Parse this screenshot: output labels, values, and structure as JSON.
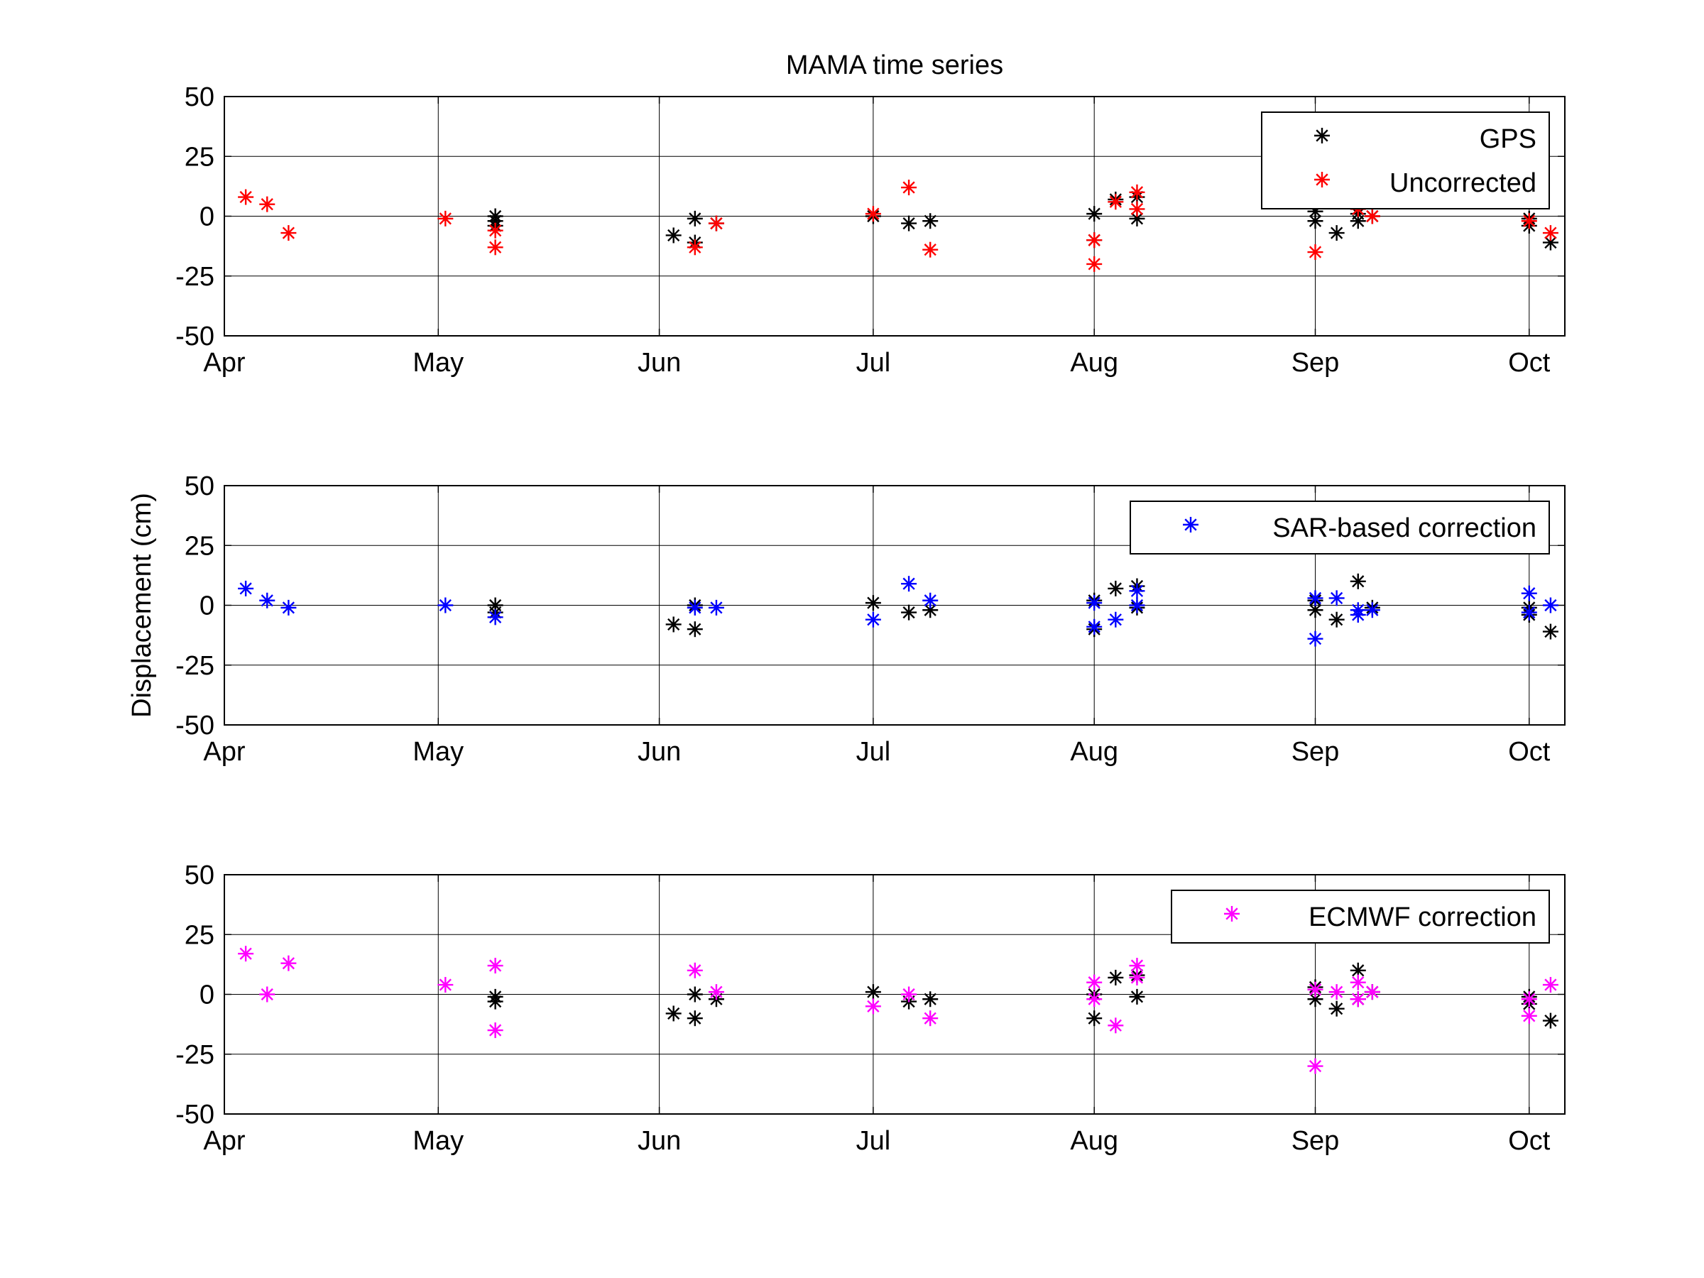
{
  "chart_data": [
    {
      "type": "scatter",
      "title": "MAMA time series",
      "xlabel": "",
      "ylabel": "",
      "x_ticks": [
        "Apr",
        "May",
        "Jun",
        "Jul",
        "Aug",
        "Sep",
        "Oct"
      ],
      "xlim": [
        "2000-04-01",
        "2000-10-06"
      ],
      "ylim": [
        -50,
        50
      ],
      "y_ticks": [
        -50,
        -25,
        0,
        25,
        50
      ],
      "grid": true,
      "legend": "top-right",
      "series": [
        {
          "name": "GPS",
          "color": "#000000",
          "marker": "asterisk",
          "points": [
            [
              "2000-05-09",
              0
            ],
            [
              "2000-05-09",
              -2
            ],
            [
              "2000-05-09",
              -4
            ],
            [
              "2000-06-03",
              -8
            ],
            [
              "2000-06-06",
              -1
            ],
            [
              "2000-06-06",
              -11
            ],
            [
              "2000-06-09",
              -3
            ],
            [
              "2000-07-01",
              0
            ],
            [
              "2000-07-06",
              -3
            ],
            [
              "2000-07-09",
              -2
            ],
            [
              "2000-08-01",
              1
            ],
            [
              "2000-08-01",
              -10
            ],
            [
              "2000-08-04",
              7
            ],
            [
              "2000-08-07",
              8
            ],
            [
              "2000-08-07",
              -1
            ],
            [
              "2000-09-01",
              2
            ],
            [
              "2000-09-01",
              -2
            ],
            [
              "2000-09-04",
              -7
            ],
            [
              "2000-09-07",
              -2
            ],
            [
              "2000-09-07",
              1
            ],
            [
              "2000-09-09",
              0
            ],
            [
              "2000-10-01",
              -4
            ],
            [
              "2000-10-01",
              -1
            ],
            [
              "2000-10-04",
              -11
            ]
          ]
        },
        {
          "name": "Uncorrected",
          "color": "#ff0000",
          "marker": "asterisk",
          "points": [
            [
              "2000-04-04",
              8
            ],
            [
              "2000-04-07",
              5
            ],
            [
              "2000-04-10",
              -7
            ],
            [
              "2000-05-02",
              -1
            ],
            [
              "2000-05-09",
              -13
            ],
            [
              "2000-05-09",
              -6
            ],
            [
              "2000-06-06",
              -13
            ],
            [
              "2000-06-09",
              -3
            ],
            [
              "2000-07-01",
              1
            ],
            [
              "2000-07-06",
              12
            ],
            [
              "2000-07-09",
              -14
            ],
            [
              "2000-08-01",
              -20
            ],
            [
              "2000-08-01",
              -10
            ],
            [
              "2000-08-04",
              6
            ],
            [
              "2000-08-07",
              10
            ],
            [
              "2000-08-07",
              3
            ],
            [
              "2000-09-01",
              -15
            ],
            [
              "2000-09-07",
              3
            ],
            [
              "2000-09-09",
              0
            ],
            [
              "2000-10-01",
              -2
            ],
            [
              "2000-10-04",
              -7
            ]
          ]
        }
      ]
    },
    {
      "type": "scatter",
      "title": "",
      "xlabel": "",
      "ylabel": "Displacement (cm)",
      "x_ticks": [
        "Apr",
        "May",
        "Jun",
        "Jul",
        "Aug",
        "Sep",
        "Oct"
      ],
      "xlim": [
        "2000-04-01",
        "2000-10-06"
      ],
      "ylim": [
        -50,
        50
      ],
      "y_ticks": [
        -50,
        -25,
        0,
        25,
        50
      ],
      "grid": true,
      "legend": "top-right",
      "series": [
        {
          "name": "",
          "color": "#000000",
          "marker": "asterisk",
          "points": [
            [
              "2000-05-09",
              0
            ],
            [
              "2000-05-09",
              -3
            ],
            [
              "2000-06-03",
              -8
            ],
            [
              "2000-06-06",
              0
            ],
            [
              "2000-06-06",
              -10
            ],
            [
              "2000-07-01",
              1
            ],
            [
              "2000-07-06",
              -3
            ],
            [
              "2000-07-09",
              -2
            ],
            [
              "2000-08-01",
              -10
            ],
            [
              "2000-08-01",
              2
            ],
            [
              "2000-08-04",
              7
            ],
            [
              "2000-08-07",
              8
            ],
            [
              "2000-08-07",
              -1
            ],
            [
              "2000-09-01",
              2
            ],
            [
              "2000-09-01",
              -2
            ],
            [
              "2000-09-04",
              -6
            ],
            [
              "2000-09-07",
              10
            ],
            [
              "2000-09-09",
              -1
            ],
            [
              "2000-10-01",
              -4
            ],
            [
              "2000-10-01",
              -1
            ],
            [
              "2000-10-04",
              -11
            ]
          ]
        },
        {
          "name": "SAR-based correction",
          "color": "#0000ff",
          "marker": "asterisk",
          "points": [
            [
              "2000-04-04",
              7
            ],
            [
              "2000-04-07",
              2
            ],
            [
              "2000-04-10",
              -1
            ],
            [
              "2000-05-02",
              0
            ],
            [
              "2000-05-09",
              -5
            ],
            [
              "2000-06-06",
              -1
            ],
            [
              "2000-06-09",
              -1
            ],
            [
              "2000-07-01",
              -6
            ],
            [
              "2000-07-06",
              9
            ],
            [
              "2000-07-09",
              2
            ],
            [
              "2000-08-01",
              1
            ],
            [
              "2000-08-01",
              -9
            ],
            [
              "2000-08-04",
              -6
            ],
            [
              "2000-08-07",
              6
            ],
            [
              "2000-08-07",
              0
            ],
            [
              "2000-09-01",
              3
            ],
            [
              "2000-09-01",
              -14
            ],
            [
              "2000-09-04",
              3
            ],
            [
              "2000-09-07",
              -2
            ],
            [
              "2000-09-07",
              -4
            ],
            [
              "2000-09-09",
              -2
            ],
            [
              "2000-10-01",
              5
            ],
            [
              "2000-10-01",
              -3
            ],
            [
              "2000-10-04",
              0
            ]
          ]
        }
      ]
    },
    {
      "type": "scatter",
      "title": "",
      "xlabel": "",
      "ylabel": "",
      "x_ticks": [
        "Apr",
        "May",
        "Jun",
        "Jul",
        "Aug",
        "Sep",
        "Oct"
      ],
      "xlim": [
        "2000-04-01",
        "2000-10-06"
      ],
      "ylim": [
        -50,
        50
      ],
      "y_ticks": [
        -50,
        -25,
        0,
        25,
        50
      ],
      "grid": true,
      "legend": "top-right",
      "series": [
        {
          "name": "",
          "color": "#000000",
          "marker": "asterisk",
          "points": [
            [
              "2000-05-09",
              -1
            ],
            [
              "2000-05-09",
              -3
            ],
            [
              "2000-06-03",
              -8
            ],
            [
              "2000-06-06",
              0
            ],
            [
              "2000-06-06",
              -10
            ],
            [
              "2000-06-09",
              -2
            ],
            [
              "2000-07-01",
              1
            ],
            [
              "2000-07-06",
              -3
            ],
            [
              "2000-07-09",
              -2
            ],
            [
              "2000-08-01",
              -10
            ],
            [
              "2000-08-01",
              0
            ],
            [
              "2000-08-04",
              7
            ],
            [
              "2000-08-07",
              8
            ],
            [
              "2000-08-07",
              -1
            ],
            [
              "2000-09-01",
              3
            ],
            [
              "2000-09-01",
              -2
            ],
            [
              "2000-09-04",
              -6
            ],
            [
              "2000-09-07",
              10
            ],
            [
              "2000-09-07",
              -2
            ],
            [
              "2000-09-09",
              1
            ],
            [
              "2000-10-01",
              -4
            ],
            [
              "2000-10-01",
              -1
            ],
            [
              "2000-10-04",
              -11
            ]
          ]
        },
        {
          "name": "ECMWF correction",
          "color": "#ff00ff",
          "marker": "asterisk",
          "points": [
            [
              "2000-04-04",
              17
            ],
            [
              "2000-04-07",
              0
            ],
            [
              "2000-04-10",
              13
            ],
            [
              "2000-05-02",
              4
            ],
            [
              "2000-05-09",
              12
            ],
            [
              "2000-05-09",
              -15
            ],
            [
              "2000-06-06",
              10
            ],
            [
              "2000-06-09",
              1
            ],
            [
              "2000-07-01",
              -5
            ],
            [
              "2000-07-06",
              0
            ],
            [
              "2000-07-09",
              -10
            ],
            [
              "2000-08-01",
              5
            ],
            [
              "2000-08-01",
              -2
            ],
            [
              "2000-08-04",
              -13
            ],
            [
              "2000-08-07",
              12
            ],
            [
              "2000-08-07",
              7
            ],
            [
              "2000-09-01",
              -30
            ],
            [
              "2000-09-01",
              2
            ],
            [
              "2000-09-04",
              1
            ],
            [
              "2000-09-07",
              5
            ],
            [
              "2000-09-07",
              -2
            ],
            [
              "2000-09-09",
              1
            ],
            [
              "2000-10-01",
              -9
            ],
            [
              "2000-10-01",
              -2
            ],
            [
              "2000-10-04",
              4
            ]
          ]
        }
      ]
    }
  ]
}
